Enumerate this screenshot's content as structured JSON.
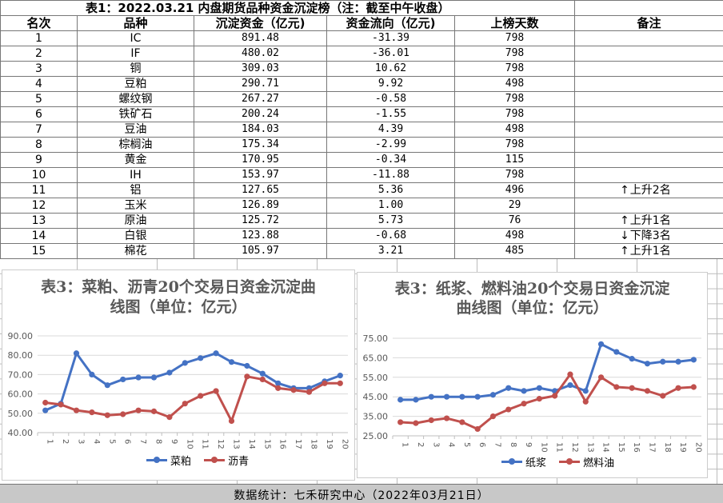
{
  "table": {
    "title": "表1：2022.03.21 内盘期货品种资金沉淀榜（注：截至中午收盘）",
    "headers": [
      "名次",
      "品种",
      "沉淀资金（亿元)",
      "资金流向（亿元)",
      "上榜天数",
      "备注"
    ],
    "rows": [
      {
        "rank": "1",
        "name": "IC",
        "fund": "891.48",
        "flow": "-31.39",
        "days": "798",
        "note": "",
        "arrow": ""
      },
      {
        "rank": "2",
        "name": "IF",
        "fund": "480.02",
        "flow": "-36.01",
        "days": "798",
        "note": "",
        "arrow": ""
      },
      {
        "rank": "3",
        "name": "铜",
        "fund": "309.03",
        "flow": "10.62",
        "days": "798",
        "note": "",
        "arrow": ""
      },
      {
        "rank": "4",
        "name": "豆粕",
        "fund": "290.71",
        "flow": "9.92",
        "days": "498",
        "note": "",
        "arrow": ""
      },
      {
        "rank": "5",
        "name": "螺纹钢",
        "fund": "267.27",
        "flow": "-0.58",
        "days": "798",
        "note": "",
        "arrow": ""
      },
      {
        "rank": "6",
        "name": "铁矿石",
        "fund": "200.24",
        "flow": "-1.55",
        "days": "798",
        "note": "",
        "arrow": ""
      },
      {
        "rank": "7",
        "name": "豆油",
        "fund": "184.03",
        "flow": "4.39",
        "days": "498",
        "note": "",
        "arrow": ""
      },
      {
        "rank": "8",
        "name": "棕榈油",
        "fund": "175.34",
        "flow": "-2.99",
        "days": "798",
        "note": "",
        "arrow": ""
      },
      {
        "rank": "9",
        "name": "黄金",
        "fund": "170.95",
        "flow": "-0.34",
        "days": "115",
        "note": "",
        "arrow": ""
      },
      {
        "rank": "10",
        "name": "IH",
        "fund": "153.97",
        "flow": "-11.88",
        "days": "798",
        "note": "",
        "arrow": ""
      },
      {
        "rank": "11",
        "name": "铝",
        "fund": "127.65",
        "flow": "5.36",
        "days": "496",
        "note": "上升2名",
        "arrow": "↑"
      },
      {
        "rank": "12",
        "name": "玉米",
        "fund": "126.89",
        "flow": "1.00",
        "days": "29",
        "note": "",
        "arrow": ""
      },
      {
        "rank": "13",
        "name": "原油",
        "fund": "125.72",
        "flow": "5.73",
        "days": "76",
        "note": "上升1名",
        "arrow": "↑"
      },
      {
        "rank": "14",
        "name": "白银",
        "fund": "123.88",
        "flow": "-0.68",
        "days": "498",
        "note": "下降3名",
        "arrow": "↓"
      },
      {
        "rank": "15",
        "name": "棉花",
        "fund": "105.97",
        "flow": "3.21",
        "days": "485",
        "note": "上升1名",
        "arrow": "↑"
      }
    ]
  },
  "charts": [
    {
      "title_line1": "表3：菜粕、沥青20个交易日资金沉淀曲",
      "title_line2": "线图（单位：亿元）",
      "chart_data": {
        "type": "line",
        "x": [
          "1",
          "2",
          "3",
          "4",
          "5",
          "6",
          "7",
          "8",
          "9",
          "10",
          "11",
          "12",
          "13",
          "14",
          "15",
          "16",
          "17",
          "18",
          "19",
          "20"
        ],
        "ylim": [
          40,
          90
        ],
        "yticks": [
          "40.00",
          "50.00",
          "60.00",
          "70.00",
          "80.00",
          "90.00"
        ],
        "grid": true,
        "legend": "bottom",
        "series": [
          {
            "name": "菜粕",
            "color": "#4472c4",
            "values": [
              51.5,
              55.0,
              81.0,
              70.0,
              64.5,
              67.5,
              68.5,
              68.5,
              71.0,
              76.0,
              78.5,
              81.0,
              76.5,
              74.5,
              70.5,
              65.5,
              63.0,
              63.0,
              66.5,
              69.5
            ]
          },
          {
            "name": "沥青",
            "color": "#c0504d",
            "values": [
              55.5,
              54.5,
              51.5,
              50.5,
              49.0,
              49.5,
              51.5,
              51.0,
              48.0,
              55.0,
              59.0,
              61.5,
              46.0,
              69.0,
              67.5,
              63.0,
              62.0,
              61.0,
              65.5,
              65.5
            ]
          }
        ]
      }
    },
    {
      "title_line1": "表3：纸浆、燃料油20个交易日资金沉淀",
      "title_line2": "曲线图（单位：亿元）",
      "chart_data": {
        "type": "line",
        "x": [
          "1",
          "2",
          "3",
          "4",
          "5",
          "6",
          "7",
          "8",
          "9",
          "10",
          "11",
          "12",
          "13",
          "14",
          "15",
          "16",
          "17",
          "18",
          "19",
          "20"
        ],
        "ylim": [
          25,
          75
        ],
        "yticks": [
          "25.00",
          "35.00",
          "45.00",
          "55.00",
          "65.00",
          "75.00"
        ],
        "grid": true,
        "legend": "bottom",
        "series": [
          {
            "name": "纸浆",
            "color": "#4472c4",
            "values": [
              43.5,
              43.5,
              45.0,
              45.0,
              45.0,
              45.0,
              46.0,
              49.5,
              48.0,
              49.5,
              48.0,
              51.0,
              48.0,
              72.0,
              68.0,
              64.5,
              62.0,
              63.0,
              63.0,
              64.0
            ]
          },
          {
            "name": "燃料油",
            "color": "#c0504d",
            "values": [
              32.0,
              31.5,
              33.0,
              34.0,
              32.0,
              28.5,
              35.0,
              38.5,
              41.5,
              44.0,
              45.5,
              56.5,
              42.5,
              55.0,
              50.0,
              49.5,
              48.0,
              45.5,
              49.5,
              50.0
            ]
          }
        ]
      }
    }
  ],
  "footer": "数据统计：七禾研究中心（2022年03月21日）"
}
